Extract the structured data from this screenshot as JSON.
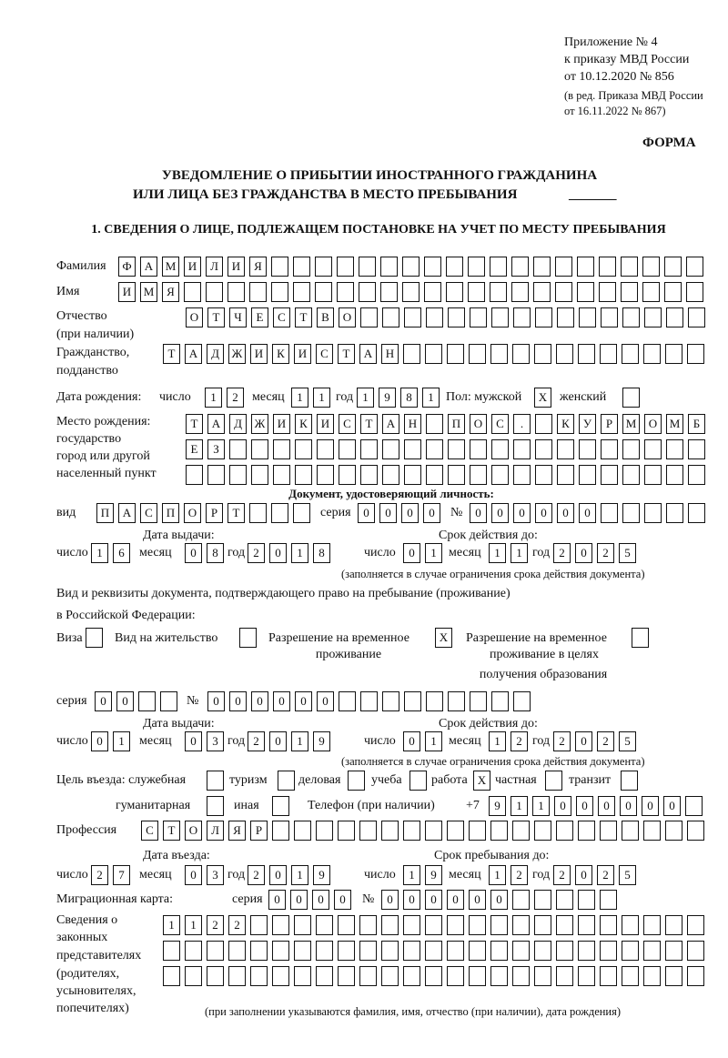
{
  "header": {
    "appendix": [
      "Приложение № 4",
      "к приказу МВД России",
      "от 10.12.2020 № 856"
    ],
    "revision": [
      "(в ред. Приказа МВД России",
      "от 16.11.2022 № 867)"
    ],
    "forma": "ФОРМА"
  },
  "title": {
    "line1": "УВЕДОМЛЕНИЕ О ПРИБЫТИИ ИНОСТРАННОГО ГРАЖДАНИНА",
    "line2": "ИЛИ ЛИЦА БЕЗ ГРАЖДАНСТВА В МЕСТО ПРЕБЫВАНИЯ",
    "blank": "_______"
  },
  "section1": "1. СВЕДЕНИЯ О ЛИЦЕ, ПОДЛЕЖАЩЕМ ПОСТАНОВКЕ НА УЧЕТ ПО МЕСТУ ПРЕБЫВАНИЯ",
  "person": {
    "surname": {
      "label": "Фамилия",
      "boxes": [
        "Ф",
        "А",
        "М",
        "И",
        "Л",
        "И",
        "Я",
        "",
        "",
        "",
        "",
        "",
        "",
        "",
        "",
        "",
        "",
        "",
        "",
        "",
        "",
        "",
        "",
        "",
        "",
        "",
        ""
      ]
    },
    "name": {
      "label": "Имя",
      "boxes": [
        "И",
        "М",
        "Я",
        "",
        "",
        "",
        "",
        "",
        "",
        "",
        "",
        "",
        "",
        "",
        "",
        "",
        "",
        "",
        "",
        "",
        "",
        "",
        "",
        "",
        "",
        "",
        ""
      ]
    },
    "patronymic": {
      "label": "Отчество",
      "label2": "(при наличии)",
      "boxes": [
        "О",
        "Т",
        "Ч",
        "Е",
        "С",
        "Т",
        "В",
        "О",
        "",
        "",
        "",
        "",
        "",
        "",
        "",
        "",
        "",
        "",
        "",
        "",
        "",
        "",
        "",
        ""
      ]
    },
    "citizenship": {
      "label": "Гражданство,",
      "label2": "подданство",
      "boxes": [
        "Т",
        "А",
        "Д",
        "Ж",
        "И",
        "К",
        "И",
        "С",
        "Т",
        "А",
        "Н",
        "",
        "",
        "",
        "",
        "",
        "",
        "",
        "",
        "",
        "",
        "",
        "",
        "",
        ""
      ]
    },
    "birth_date": {
      "label": "Дата рождения:",
      "day_label": "число",
      "month_label": "месяц",
      "year_label": "год",
      "day": [
        "1",
        "2"
      ],
      "month": [
        "1",
        "1"
      ],
      "year": [
        "1",
        "9",
        "8",
        "1"
      ],
      "sex_label": "Пол: мужской",
      "male": [
        "X"
      ],
      "female_label": "женский",
      "female": [
        ""
      ]
    },
    "birth_place": {
      "labels": [
        "Место рождения:",
        "государство",
        "город или другой",
        "населенный пункт"
      ],
      "row1": [
        "Т",
        "А",
        "Д",
        "Ж",
        "И",
        "К",
        "И",
        "С",
        "Т",
        "А",
        "Н",
        "",
        "П",
        "О",
        "С",
        ".",
        "",
        "К",
        "У",
        "Р",
        "М",
        "О",
        "М",
        "Б"
      ],
      "row2": [
        "Е",
        "З",
        "",
        "",
        "",
        "",
        "",
        "",
        "",
        "",
        "",
        "",
        "",
        "",
        "",
        "",
        "",
        "",
        "",
        "",
        "",
        "",
        "",
        ""
      ],
      "row3": [
        "",
        "",
        "",
        "",
        "",
        "",
        "",
        "",
        "",
        "",
        "",
        "",
        "",
        "",
        "",
        "",
        "",
        "",
        "",
        "",
        "",
        "",
        "",
        ""
      ]
    }
  },
  "identity_doc": {
    "heading": "Документ, удостоверяющий личность:",
    "type_label": "вид",
    "type": [
      "П",
      "А",
      "С",
      "П",
      "О",
      "Р",
      "Т",
      "",
      "",
      ""
    ],
    "series_label": "серия",
    "series": [
      "0",
      "0",
      "0",
      "0"
    ],
    "number_label": "№",
    "number": [
      "0",
      "0",
      "0",
      "0",
      "0",
      "0",
      "",
      "",
      "",
      "",
      ""
    ],
    "issue_label": "Дата выдачи:",
    "valid_label": "Срок действия до:",
    "day_label": "число",
    "month_label": "месяц",
    "year_label": "год",
    "issue_day": [
      "1",
      "6"
    ],
    "issue_month": [
      "0",
      "8"
    ],
    "issue_year": [
      "2",
      "0",
      "1",
      "8"
    ],
    "valid_day": [
      "0",
      "1"
    ],
    "valid_month": [
      "1",
      "1"
    ],
    "valid_year": [
      "2",
      "0",
      "2",
      "5"
    ],
    "note": "(заполняется в случае ограничения срока действия документа)"
  },
  "residence_doc": {
    "heading1": "Вид и реквизиты документа, подтверждающего право на пребывание (проживание)",
    "heading2": "в Российской Федерации:",
    "visa_label": "Виза",
    "visa": [
      ""
    ],
    "residence_permit_label": "Вид на жительство",
    "residence_permit": [
      ""
    ],
    "temp_permit_label1": "Разрешение на временное",
    "temp_permit_label2": "проживание",
    "temp_permit": [
      "X"
    ],
    "temp_edu_label1": "Разрешение на временное",
    "temp_edu_label2": "проживание в целях",
    "temp_edu_label3": "получения образования",
    "temp_edu": [
      ""
    ],
    "series_label": "серия",
    "series": [
      "0",
      "0",
      "",
      ""
    ],
    "number_label": "№",
    "number": [
      "0",
      "0",
      "0",
      "0",
      "0",
      "0",
      "",
      "",
      "",
      "",
      "",
      "",
      "",
      "",
      ""
    ],
    "issue_label": "Дата выдачи:",
    "valid_label": "Срок действия до:",
    "day_label": "число",
    "month_label": "месяц",
    "year_label": "год",
    "issue_day": [
      "0",
      "1"
    ],
    "issue_month": [
      "0",
      "3"
    ],
    "issue_year": [
      "2",
      "0",
      "1",
      "9"
    ],
    "valid_day": [
      "0",
      "1"
    ],
    "valid_month": [
      "1",
      "2"
    ],
    "valid_year": [
      "2",
      "0",
      "2",
      "5"
    ],
    "note": "(заполняется в случае ограничения срока действия документа)"
  },
  "purpose": {
    "label": "Цель въезда: служебная",
    "service": [
      ""
    ],
    "tourism_label": "туризм",
    "tourism": [
      ""
    ],
    "business_label": "деловая",
    "business": [
      ""
    ],
    "study_label": "учеба",
    "study": [
      ""
    ],
    "work_label": "работа",
    "work": [
      "X"
    ],
    "private_label": "частная",
    "private": [
      ""
    ],
    "transit_label": "транзит",
    "transit": [
      ""
    ],
    "humanitarian_label": "гуманитарная",
    "humanitarian": [
      ""
    ],
    "other_label": "иная",
    "other": [
      ""
    ]
  },
  "phone": {
    "label": "Телефон (при наличии)",
    "prefix": "+7",
    "boxes": [
      "9",
      "1",
      "1",
      "0",
      "0",
      "0",
      "0",
      "0",
      "0",
      ""
    ]
  },
  "profession": {
    "label": "Профессия",
    "boxes": [
      "С",
      "Т",
      "О",
      "Л",
      "Я",
      "Р",
      "",
      "",
      "",
      "",
      "",
      "",
      "",
      "",
      "",
      "",
      "",
      "",
      "",
      "",
      "",
      "",
      "",
      "",
      "",
      ""
    ]
  },
  "stay": {
    "entry_label": "Дата въезда:",
    "until_label": "Срок пребывания до:",
    "day_label": "число",
    "month_label": "месяц",
    "year_label": "год",
    "entry_day": [
      "2",
      "7"
    ],
    "entry_month": [
      "0",
      "3"
    ],
    "entry_year": [
      "2",
      "0",
      "1",
      "9"
    ],
    "until_day": [
      "1",
      "9"
    ],
    "until_month": [
      "1",
      "2"
    ],
    "until_year": [
      "2",
      "0",
      "2",
      "5"
    ]
  },
  "migration_card": {
    "label": "Миграционная карта:",
    "series_label": "серия",
    "series": [
      "0",
      "0",
      "0",
      "0"
    ],
    "number_label": "№",
    "number": [
      "0",
      "0",
      "0",
      "0",
      "0",
      "0",
      "",
      "",
      "",
      "",
      ""
    ]
  },
  "representatives": {
    "labels": [
      "Сведения о",
      "законных",
      "представителях",
      "(родителях,",
      "усыновителях,",
      "попечителях)"
    ],
    "row1": [
      "1",
      "1",
      "2",
      "2",
      "",
      "",
      "",
      "",
      "",
      "",
      "",
      "",
      "",
      "",
      "",
      "",
      "",
      "",
      "",
      "",
      "",
      "",
      "",
      "",
      ""
    ],
    "row2": [
      "",
      "",
      "",
      "",
      "",
      "",
      "",
      "",
      "",
      "",
      "",
      "",
      "",
      "",
      "",
      "",
      "",
      "",
      "",
      "",
      "",
      "",
      "",
      "",
      ""
    ],
    "row3": [
      "",
      "",
      "",
      "",
      "",
      "",
      "",
      "",
      "",
      "",
      "",
      "",
      "",
      "",
      "",
      "",
      "",
      "",
      "",
      "",
      "",
      "",
      "",
      "",
      ""
    ],
    "note": "(при заполнении указываются фамилия, имя, отчество (при наличии), дата рождения)"
  }
}
